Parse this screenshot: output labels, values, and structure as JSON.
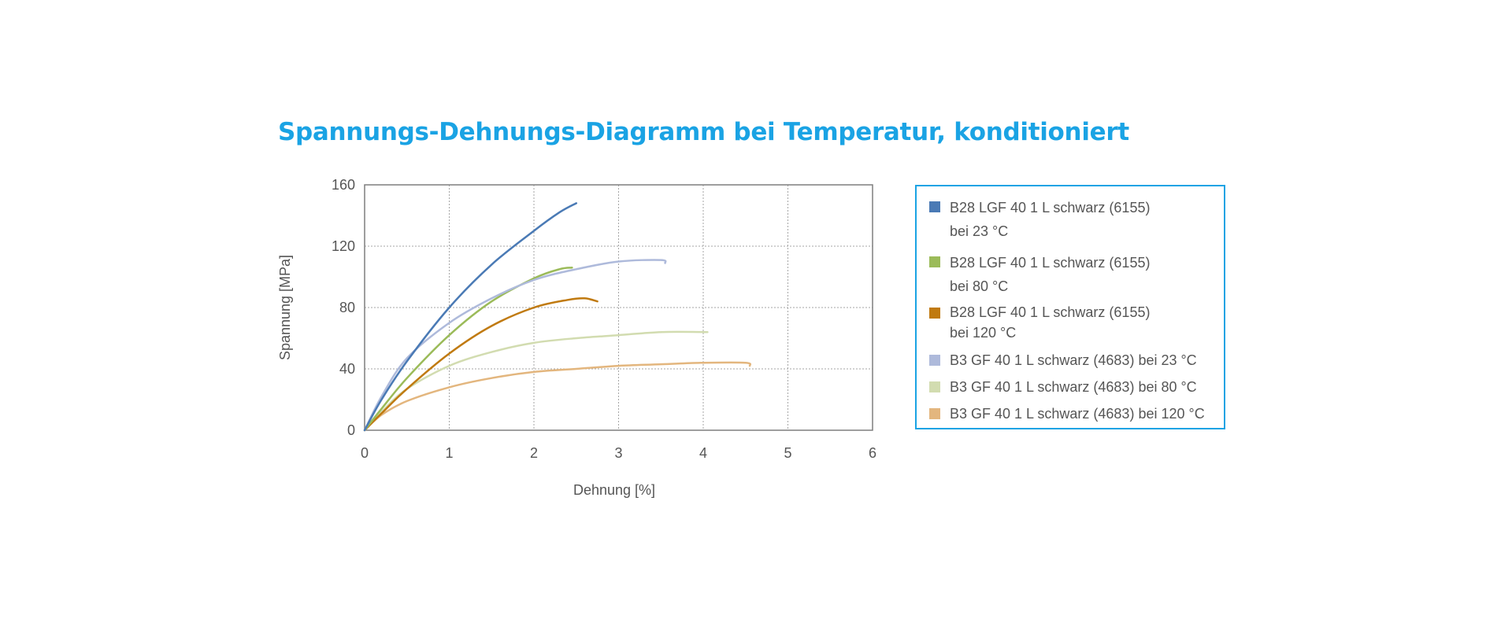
{
  "chart_data": {
    "type": "line",
    "title": "Spannungs-Dehnungs-Diagramm bei Temperatur, konditioniert",
    "xlabel": "Dehnung [%]",
    "ylabel": "Spannung [MPa]",
    "xlim": [
      0,
      6
    ],
    "ylim": [
      0,
      160
    ],
    "xticks": [
      "0",
      "1",
      "2",
      "3",
      "4",
      "5",
      "6"
    ],
    "yticks": [
      "0",
      "40",
      "80",
      "120",
      "160"
    ],
    "grid": true,
    "legend_position": "right",
    "series": [
      {
        "name_lines": [
          "B28 LGF 40 1 L schwarz (6155)",
          "bei 23 °C"
        ],
        "color": "#4a7ab5",
        "x": [
          0,
          0.2,
          0.5,
          1.0,
          1.5,
          2.0,
          2.3,
          2.5
        ],
        "y": [
          0,
          20,
          45,
          80,
          108,
          130,
          142,
          148
        ]
      },
      {
        "name_lines": [
          "B28 LGF 40 1 L schwarz (6155)",
          "bei 80 °C"
        ],
        "color": "#9bbb59",
        "x": [
          0,
          0.2,
          0.5,
          1.0,
          1.5,
          2.0,
          2.3,
          2.45
        ],
        "y": [
          0,
          14,
          34,
          62,
          84,
          99,
          105,
          106
        ]
      },
      {
        "name_lines": [
          "B28 LGF 40 1 L schwarz (6155)",
          "bei 120 °C"
        ],
        "color": "#c07a10",
        "x": [
          0,
          0.2,
          0.5,
          1.0,
          1.5,
          2.0,
          2.4,
          2.6,
          2.75
        ],
        "y": [
          0,
          11,
          27,
          50,
          68,
          80,
          85,
          86,
          84
        ]
      },
      {
        "name_lines": [
          "B3 GF 40 1 L schwarz (4683) bei 23 °C"
        ],
        "color": "#aebadb",
        "x": [
          0,
          0.2,
          0.5,
          1.0,
          1.5,
          2.0,
          2.5,
          3.0,
          3.5,
          3.55
        ],
        "y": [
          0,
          22,
          47,
          70,
          86,
          98,
          105,
          110,
          111,
          109
        ]
      },
      {
        "name_lines": [
          "B3 GF 40 1 L schwarz (4683) bei 80 °C"
        ],
        "color": "#d2dcb0",
        "x": [
          0,
          0.2,
          0.5,
          1.0,
          1.5,
          2.0,
          2.5,
          3.0,
          3.5,
          4.05
        ],
        "y": [
          0,
          12,
          27,
          42,
          51,
          57,
          60,
          62,
          64,
          64
        ]
      },
      {
        "name_lines": [
          "B3 GF 40 1 L schwarz (4683) bei 120 °C"
        ],
        "color": "#e3b67e",
        "x": [
          0,
          0.2,
          0.5,
          1.0,
          1.5,
          2.0,
          2.5,
          3.0,
          3.5,
          4.0,
          4.5,
          4.55
        ],
        "y": [
          0,
          10,
          19,
          28,
          34,
          38,
          40,
          42,
          43,
          44,
          44,
          42
        ]
      }
    ]
  }
}
